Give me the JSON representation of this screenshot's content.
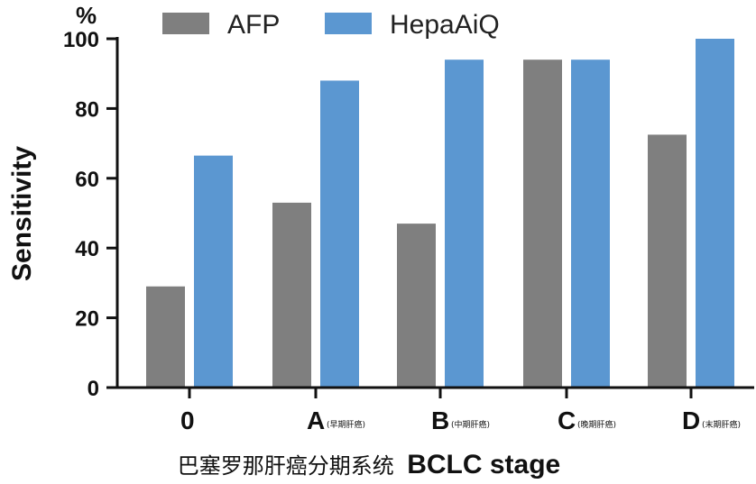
{
  "chart_data": {
    "type": "bar",
    "categories": [
      "0",
      "A",
      "B",
      "C",
      "D"
    ],
    "category_notes": [
      "",
      "(早期肝癌)",
      "(中期肝癌)",
      "(晚期肝癌)",
      "(末期肝癌)"
    ],
    "series": [
      {
        "name": "AFP",
        "values": [
          29,
          53,
          47,
          94,
          72.5
        ],
        "color": "#7f7f7f"
      },
      {
        "name": "HepaAiQ",
        "values": [
          66.5,
          88,
          94,
          94,
          100
        ],
        "color": "#5b97d1"
      }
    ],
    "ylabel": "Sensitivity",
    "yunit": "%",
    "xlabel_cn": "巴塞罗那肝癌分期系统",
    "xlabel_en": "BCLC stage",
    "ylim": [
      0,
      100
    ],
    "yticks": [
      0,
      20,
      40,
      60,
      80,
      100
    ],
    "grid": false,
    "legend_position": "top"
  }
}
